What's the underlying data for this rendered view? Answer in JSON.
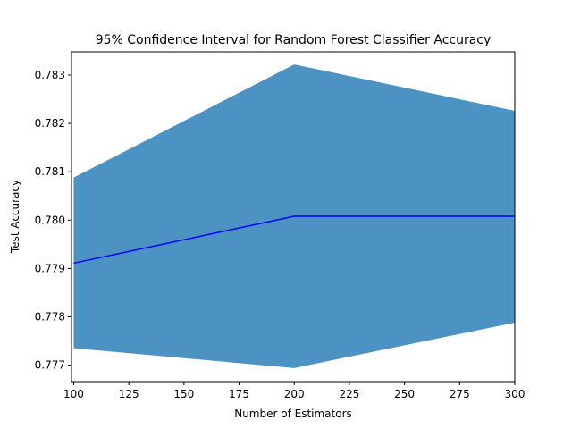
{
  "chart_data": {
    "type": "area",
    "title": "95% Confidence Interval for Random Forest Classifier Accuracy",
    "xlabel": "Number of Estimators",
    "ylabel": "Test Accuracy",
    "xlim": [
      99,
      300
    ],
    "ylim": [
      0.77666,
      0.78348
    ],
    "xticks": [
      100,
      125,
      150,
      175,
      200,
      225,
      250,
      275,
      300
    ],
    "yticks": [
      0.777,
      0.778,
      0.779,
      0.78,
      0.781,
      0.782,
      0.783
    ],
    "x": [
      100,
      200,
      300
    ],
    "series": [
      {
        "kind": "band",
        "lower": [
          0.77735,
          0.77694,
          0.77788
        ],
        "upper": [
          0.78088,
          0.78322,
          0.78226
        ],
        "color": "#4c93c3"
      },
      {
        "kind": "line",
        "values": [
          0.77911,
          0.78008,
          0.78008
        ],
        "color": "#0000ff"
      }
    ],
    "grid": false,
    "legend": "none"
  }
}
